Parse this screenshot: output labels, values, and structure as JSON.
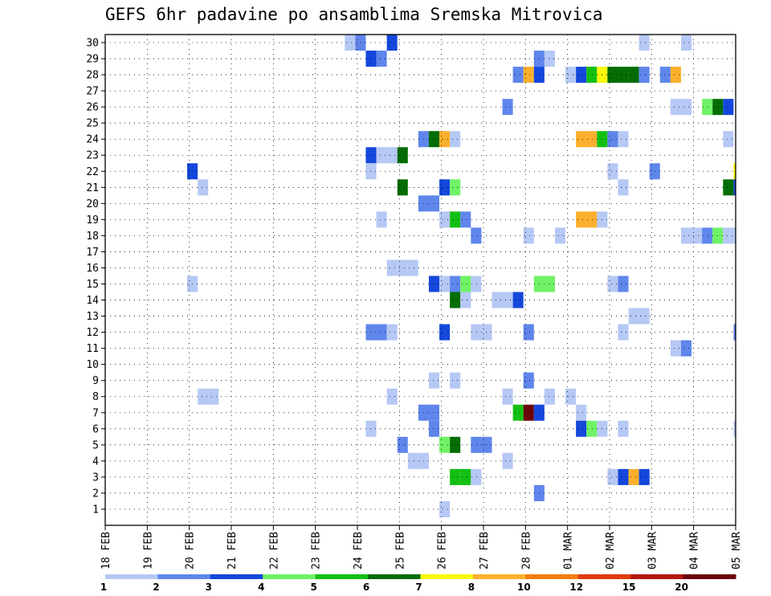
{
  "title": "GEFS 6hr padavine po ansamblima Sremska Mitrovica",
  "chart_data": {
    "type": "heatmap",
    "title": "GEFS 6hr padavine po ansamblima Sremska Mitrovica",
    "xlabel": "",
    "ylabel": "",
    "x_tick_labels": [
      "18 FEB",
      "19 FEB",
      "20 FEB",
      "21 FEB",
      "22 FEB",
      "23 FEB",
      "24 FEB",
      "25 FEB",
      "26 FEB",
      "27 FEB",
      "28 FEB",
      "01 MAR",
      "02 MAR",
      "03 MAR",
      "04 MAR",
      "05 MAR"
    ],
    "y_tick_labels": [
      "1",
      "2",
      "3",
      "4",
      "5",
      "6",
      "7",
      "8",
      "9",
      "10",
      "11",
      "12",
      "13",
      "14",
      "15",
      "16",
      "17",
      "18",
      "19",
      "20",
      "21",
      "22",
      "23",
      "24",
      "25",
      "26",
      "27",
      "28",
      "29",
      "30"
    ],
    "xlim": [
      0,
      60
    ],
    "ylim": [
      0,
      30
    ],
    "x_unit": "6h steps from 18 FEB 00Z",
    "grid": true,
    "colorbar": {
      "placement": "bottom",
      "labels": [
        "1",
        "2",
        "3",
        "4",
        "5",
        "6",
        "7",
        "8",
        "10",
        "12",
        "15",
        "20"
      ],
      "colors": [
        "#b6c8f5",
        "#5f86eb",
        "#1448dc",
        "#6ff266",
        "#12c012",
        "#046d04",
        "#f8f80a",
        "#fbb02c",
        "#f67c0b",
        "#e03a0c",
        "#b2160c",
        "#6b0309"
      ]
    },
    "cells": [
      [
        30,
        22.8,
        0
      ],
      [
        30,
        23.8,
        1
      ],
      [
        30,
        26.8,
        2
      ],
      [
        30,
        50.8,
        0
      ],
      [
        30,
        54.8,
        0
      ],
      [
        29,
        24.8,
        2
      ],
      [
        29,
        25.8,
        1
      ],
      [
        29,
        40.8,
        1
      ],
      [
        29,
        41.8,
        0
      ],
      [
        28,
        38.8,
        1
      ],
      [
        28,
        39.8,
        7
      ],
      [
        28,
        40.8,
        2
      ],
      [
        28,
        43.8,
        0
      ],
      [
        28,
        44.8,
        2
      ],
      [
        28,
        45.8,
        4
      ],
      [
        28,
        46.8,
        6
      ],
      [
        28,
        47.8,
        5
      ],
      [
        28,
        48.8,
        5
      ],
      [
        28,
        49.8,
        5
      ],
      [
        28,
        50.8,
        1
      ],
      [
        28,
        52.8,
        1
      ],
      [
        28,
        53.8,
        7
      ],
      [
        26,
        37.8,
        1
      ],
      [
        26,
        53.8,
        0
      ],
      [
        26,
        54.8,
        0
      ],
      [
        26,
        56.8,
        3
      ],
      [
        26,
        57.8,
        5
      ],
      [
        26,
        58.8,
        2
      ],
      [
        24,
        29.8,
        1
      ],
      [
        24,
        30.8,
        5
      ],
      [
        24,
        31.8,
        7
      ],
      [
        24,
        32.8,
        0
      ],
      [
        24,
        44.8,
        7
      ],
      [
        24,
        45.8,
        7
      ],
      [
        24,
        46.8,
        4
      ],
      [
        24,
        47.8,
        1
      ],
      [
        24,
        48.8,
        0
      ],
      [
        24,
        58.8,
        0
      ],
      [
        23,
        24.8,
        2
      ],
      [
        23,
        25.8,
        0
      ],
      [
        23,
        26.8,
        0
      ],
      [
        23,
        27.8,
        5
      ],
      [
        22,
        7.8,
        2
      ],
      [
        22,
        24.8,
        0
      ],
      [
        22,
        47.8,
        0
      ],
      [
        22,
        51.8,
        1
      ],
      [
        22,
        59.8,
        6
      ],
      [
        21,
        8.8,
        0
      ],
      [
        21,
        27.8,
        5
      ],
      [
        21,
        31.8,
        2
      ],
      [
        21,
        32.8,
        3
      ],
      [
        21,
        48.8,
        0
      ],
      [
        21,
        58.8,
        5
      ],
      [
        21,
        59.8,
        2
      ],
      [
        20,
        29.8,
        1
      ],
      [
        20,
        30.8,
        1
      ],
      [
        19,
        25.8,
        0
      ],
      [
        19,
        31.8,
        0
      ],
      [
        19,
        32.8,
        4
      ],
      [
        19,
        33.8,
        1
      ],
      [
        19,
        44.8,
        7
      ],
      [
        19,
        45.8,
        7
      ],
      [
        19,
        46.8,
        0
      ],
      [
        18,
        34.8,
        1
      ],
      [
        18,
        39.8,
        0
      ],
      [
        18,
        42.8,
        0
      ],
      [
        18,
        54.8,
        0
      ],
      [
        18,
        55.8,
        0
      ],
      [
        18,
        56.8,
        1
      ],
      [
        18,
        57.8,
        3
      ],
      [
        18,
        58.8,
        0
      ],
      [
        18,
        59.8,
        0
      ],
      [
        16,
        26.8,
        0
      ],
      [
        16,
        27.8,
        0
      ],
      [
        16,
        28.8,
        0
      ],
      [
        15,
        7.8,
        0
      ],
      [
        15,
        30.8,
        2
      ],
      [
        15,
        31.8,
        0
      ],
      [
        15,
        32.8,
        1
      ],
      [
        15,
        33.8,
        3
      ],
      [
        15,
        34.8,
        0
      ],
      [
        15,
        40.8,
        3
      ],
      [
        15,
        41.8,
        3
      ],
      [
        15,
        47.8,
        0
      ],
      [
        15,
        48.8,
        1
      ],
      [
        14,
        32.8,
        5
      ],
      [
        14,
        33.8,
        0
      ],
      [
        14,
        36.8,
        0
      ],
      [
        14,
        37.8,
        0
      ],
      [
        14,
        38.8,
        2
      ],
      [
        13,
        49.8,
        0
      ],
      [
        13,
        50.8,
        0
      ],
      [
        12,
        24.8,
        1
      ],
      [
        12,
        25.8,
        1
      ],
      [
        12,
        26.8,
        0
      ],
      [
        12,
        31.8,
        2
      ],
      [
        12,
        34.8,
        0
      ],
      [
        12,
        35.8,
        0
      ],
      [
        12,
        39.8,
        1
      ],
      [
        12,
        48.8,
        0
      ],
      [
        12,
        59.8,
        1
      ],
      [
        11,
        53.8,
        0
      ],
      [
        11,
        54.8,
        1
      ],
      [
        9,
        30.8,
        0
      ],
      [
        9,
        32.8,
        0
      ],
      [
        9,
        39.8,
        1
      ],
      [
        8,
        8.8,
        0
      ],
      [
        8,
        9.8,
        0
      ],
      [
        8,
        26.8,
        0
      ],
      [
        8,
        37.8,
        0
      ],
      [
        8,
        41.8,
        0
      ],
      [
        8,
        43.8,
        0
      ],
      [
        7,
        29.8,
        1
      ],
      [
        7,
        30.8,
        1
      ],
      [
        7,
        38.8,
        4
      ],
      [
        7,
        39.8,
        11
      ],
      [
        7,
        40.8,
        2
      ],
      [
        7,
        44.8,
        0
      ],
      [
        6,
        24.8,
        0
      ],
      [
        6,
        30.8,
        1
      ],
      [
        6,
        44.8,
        2
      ],
      [
        6,
        45.8,
        3
      ],
      [
        6,
        46.8,
        0
      ],
      [
        6,
        48.8,
        0
      ],
      [
        6,
        59.8,
        0
      ],
      [
        5,
        27.8,
        1
      ],
      [
        5,
        31.8,
        3
      ],
      [
        5,
        32.8,
        5
      ],
      [
        5,
        34.8,
        1
      ],
      [
        5,
        35.8,
        1
      ],
      [
        4,
        28.8,
        0
      ],
      [
        4,
        29.8,
        0
      ],
      [
        4,
        37.8,
        0
      ],
      [
        3,
        32.8,
        4
      ],
      [
        3,
        33.8,
        4
      ],
      [
        3,
        34.8,
        0
      ],
      [
        3,
        47.8,
        0
      ],
      [
        3,
        48.8,
        2
      ],
      [
        3,
        49.8,
        7
      ],
      [
        3,
        50.8,
        2
      ],
      [
        2,
        40.8,
        1
      ],
      [
        1,
        31.8,
        0
      ]
    ]
  }
}
